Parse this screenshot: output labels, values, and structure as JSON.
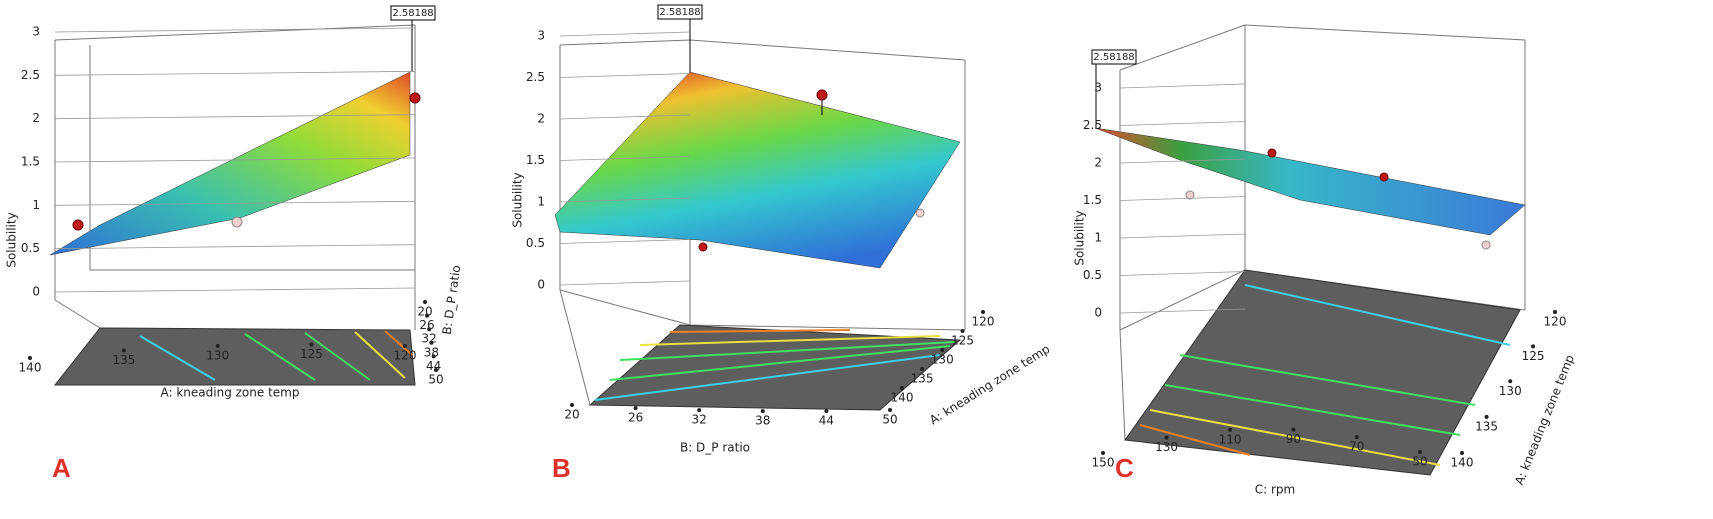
{
  "chart_data": [
    {
      "type": "surface3d",
      "panel": "A",
      "annotation": "2.58188",
      "zlabel": "Solubility",
      "zlim": [
        0,
        3
      ],
      "zticks": [
        0,
        0.5,
        1,
        1.5,
        2,
        2.5,
        3
      ],
      "xlabel": "A: kneading zone temp",
      "xlim": [
        120,
        140
      ],
      "xticks": [
        120,
        125,
        130,
        135,
        140
      ],
      "ylabel": "B: D_P ratio",
      "ylim": [
        20,
        50
      ],
      "yticks": [
        20,
        26,
        32,
        38,
        44,
        50
      ]
    },
    {
      "type": "surface3d",
      "panel": "B",
      "annotation": "2.58188",
      "zlabel": "Solubility",
      "zlim": [
        0,
        3
      ],
      "zticks": [
        0,
        0.5,
        1,
        1.5,
        2,
        2.5,
        3
      ],
      "xlabel": "B: D_P ratio",
      "xlim": [
        20,
        50
      ],
      "xticks": [
        20,
        26,
        32,
        38,
        44,
        50
      ],
      "ylabel": "A: kneading zone temp",
      "ylim": [
        120,
        140
      ],
      "yticks": [
        120,
        125,
        130,
        135,
        140
      ]
    },
    {
      "type": "surface3d",
      "panel": "C",
      "annotation": "2.58188",
      "zlabel": "Solubility",
      "zlim": [
        0,
        3
      ],
      "zticks": [
        0,
        0.5,
        1,
        1.5,
        2,
        2.5,
        3
      ],
      "xlabel": "C: rpm",
      "xlim": [
        50,
        150
      ],
      "xticks": [
        50,
        70,
        90,
        110,
        130,
        150
      ],
      "ylabel": "A: kneading zone temp",
      "ylim": [
        120,
        140
      ],
      "yticks": [
        120,
        125,
        130,
        135,
        140
      ]
    }
  ]
}
